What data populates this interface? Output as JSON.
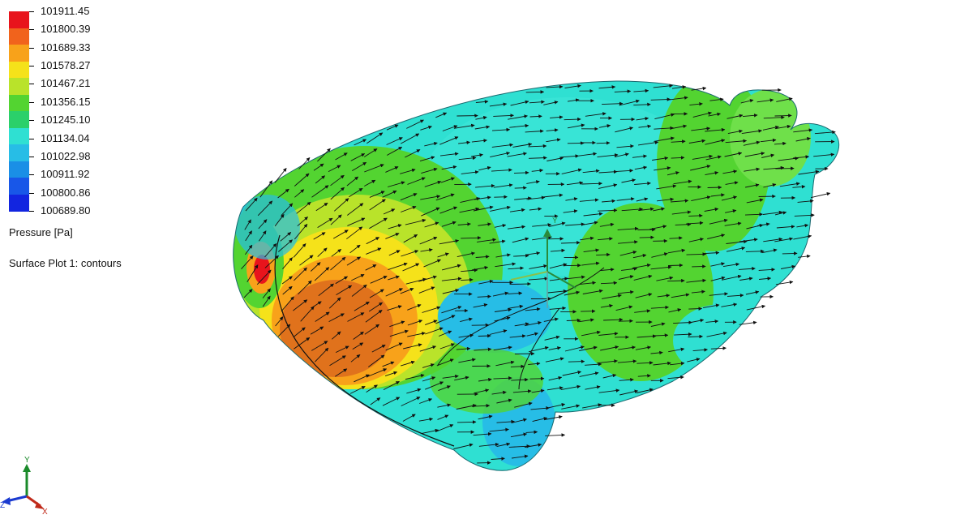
{
  "legend": {
    "values": [
      "101911.45",
      "101800.39",
      "101689.33",
      "101578.27",
      "101467.21",
      "101356.15",
      "101245.10",
      "101134.04",
      "101022.98",
      "100911.92",
      "100800.86",
      "100689.80"
    ],
    "colors": [
      "#e8141c",
      "#f1631c",
      "#f8a21a",
      "#f5e21a",
      "#b9e32a",
      "#53d431",
      "#2bd06a",
      "#2fe0d2",
      "#27bde6",
      "#1a8fe6",
      "#1857e8",
      "#1225e0"
    ],
    "title": "Pressure [Pa]",
    "subtitle": "Surface Plot 1: contours"
  },
  "triad": {
    "x": "X",
    "y": "Y",
    "z": "Z"
  }
}
